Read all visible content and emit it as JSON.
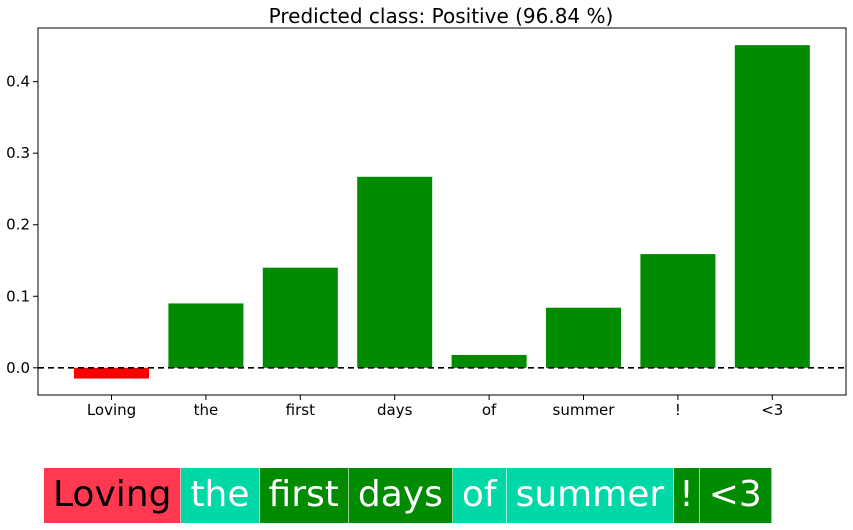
{
  "chart_data": {
    "type": "bar",
    "title": "Predicted class: Positive (96.84 %)",
    "xlabel": "",
    "ylabel": "",
    "categories": [
      "Loving",
      "the",
      "first",
      "days",
      "of",
      "summer",
      "!",
      "<3"
    ],
    "values": [
      -0.015,
      0.09,
      0.14,
      0.267,
      0.018,
      0.084,
      0.159,
      0.451
    ],
    "ylim": [
      -0.038,
      0.475
    ],
    "yticks": [
      0.0,
      0.1,
      0.2,
      0.3,
      0.4
    ],
    "ytick_labels": [
      "0.0",
      "0.1",
      "0.2",
      "0.3",
      "0.4"
    ],
    "reference_line": {
      "y": 0,
      "style": "dashed"
    },
    "grid": false,
    "colors": {
      "positive": "#008b00",
      "negative": "#ff0000"
    }
  },
  "tokens": [
    {
      "text": "Loving",
      "bg": "#ff3a50",
      "fg": "#000000"
    },
    {
      "text": "the",
      "bg": "#00d8a8",
      "fg": "#ffffff"
    },
    {
      "text": "first",
      "bg": "#008b00",
      "fg": "#ffffff"
    },
    {
      "text": "days",
      "bg": "#008b00",
      "fg": "#ffffff"
    },
    {
      "text": "of",
      "bg": "#00d8a8",
      "fg": "#ffffff"
    },
    {
      "text": "summer",
      "bg": "#00d8a8",
      "fg": "#ffffff"
    },
    {
      "text": "!",
      "bg": "#008b00",
      "fg": "#ffffff"
    },
    {
      "text": "<3",
      "bg": "#008b00",
      "fg": "#ffffff"
    }
  ]
}
